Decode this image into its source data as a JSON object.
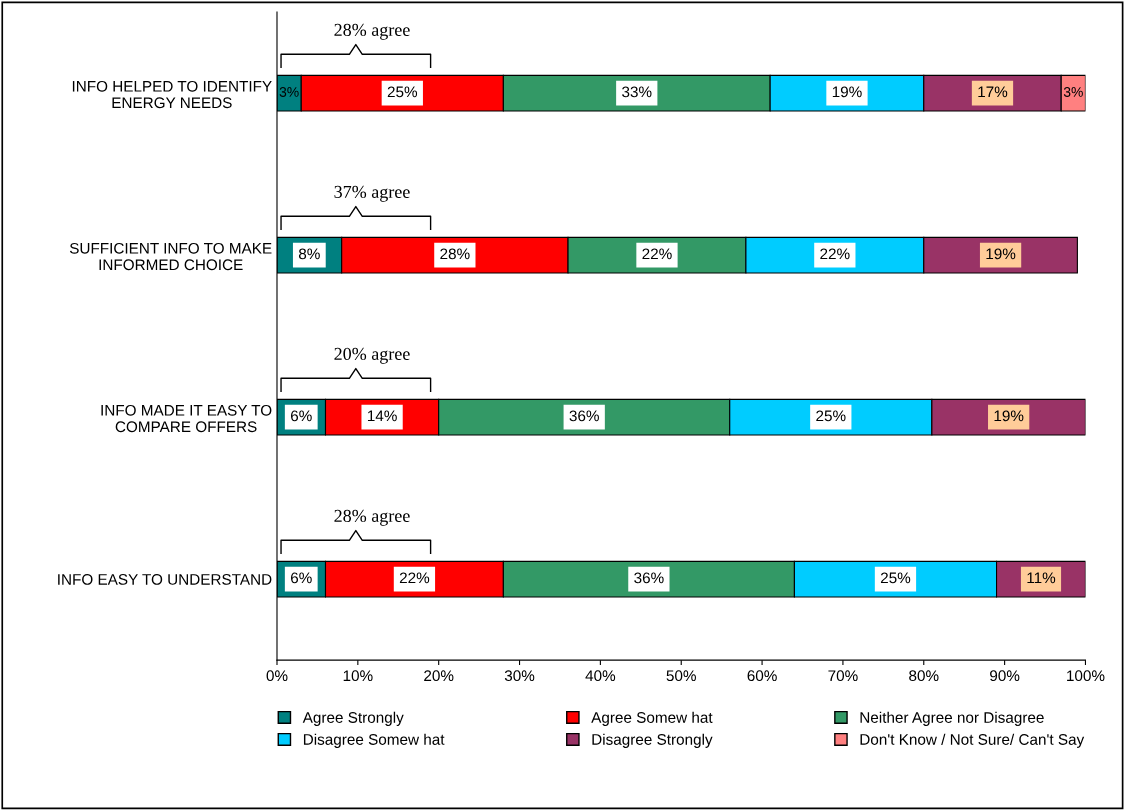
{
  "chart_data": {
    "type": "bar",
    "orientation": "horizontal",
    "stacked": true,
    "categories": [
      "INFO HELPED TO IDENTIFY\nENERGY NEEDS",
      "SUFFICIENT INFO TO MAKE\nINFORMED CHOICE",
      "INFO MADE IT EASY TO\nCOMPARE OFFERS",
      "INFO EASY TO UNDERSTAND"
    ],
    "series": [
      {
        "name": "Agree Strongly",
        "color": "#008080",
        "values": [
          3,
          8,
          6,
          6
        ],
        "value_labels": [
          "3%",
          "8%",
          "6%",
          "6%"
        ]
      },
      {
        "name": "Agree Somew hat",
        "color": "#ff0000",
        "values": [
          25,
          28,
          14,
          22
        ],
        "value_labels": [
          "25%",
          "28%",
          "14%",
          "22%"
        ]
      },
      {
        "name": "Neither Agree nor Disagree",
        "color": "#339966",
        "values": [
          33,
          22,
          36,
          36
        ],
        "value_labels": [
          "33%",
          "22%",
          "36%",
          "36%"
        ]
      },
      {
        "name": "Disagree Somew hat",
        "color": "#00ccff",
        "values": [
          19,
          22,
          25,
          25
        ],
        "value_labels": [
          "19%",
          "22%",
          "25%",
          "25%"
        ]
      },
      {
        "name": "Disagree Strongly",
        "color": "#993366",
        "values": [
          17,
          19,
          19,
          11
        ],
        "value_labels": [
          "17%",
          "19%",
          "19%",
          "11%"
        ]
      },
      {
        "name": "Don't Know / Not Sure/ Can't Say",
        "color": "#ff8080",
        "values": [
          3,
          null,
          null,
          null
        ],
        "value_labels": [
          "3%",
          null,
          null,
          null
        ]
      }
    ],
    "xlim": [
      0,
      100
    ],
    "xticks": [
      {
        "value": 0,
        "label": "0%"
      },
      {
        "value": 10,
        "label": "10%"
      },
      {
        "value": 20,
        "label": "20%"
      },
      {
        "value": 30,
        "label": "30%"
      },
      {
        "value": 40,
        "label": "40%"
      },
      {
        "value": 50,
        "label": "50%"
      },
      {
        "value": 60,
        "label": "60%"
      },
      {
        "value": 70,
        "label": "70%"
      },
      {
        "value": 80,
        "label": "80%"
      },
      {
        "value": 90,
        "label": "90%"
      },
      {
        "value": 100,
        "label": "100%"
      }
    ],
    "annotations": [
      "28% agree",
      "37% agree",
      "20% agree",
      "28% agree"
    ],
    "legend": "bottom",
    "grid": false
  }
}
